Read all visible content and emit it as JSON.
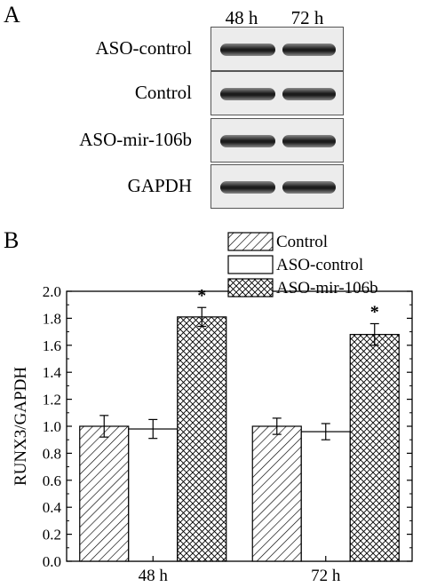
{
  "panel_a": {
    "letter": "A",
    "time_labels": [
      "48 h",
      "72 h"
    ],
    "rows": [
      {
        "label": "ASO-control"
      },
      {
        "label": "Control"
      },
      {
        "label": "ASO-mir-106b"
      },
      {
        "label": "GAPDH"
      }
    ]
  },
  "panel_b": {
    "letter": "B"
  },
  "chart_data": {
    "type": "bar",
    "categories": [
      "48 h",
      "72 h"
    ],
    "series": [
      {
        "name": "Control",
        "values": [
          1.0,
          1.0
        ],
        "errors": [
          0.08,
          0.06
        ],
        "pattern": "diagonal-hatch"
      },
      {
        "name": "ASO-control",
        "values": [
          0.98,
          0.96
        ],
        "errors": [
          0.07,
          0.06
        ],
        "pattern": "none"
      },
      {
        "name": "ASO-mir-106b",
        "values": [
          1.81,
          1.68
        ],
        "errors": [
          0.07,
          0.08
        ],
        "pattern": "crosshatch",
        "annotation": "*"
      }
    ],
    "ylabel": "RUNX3/GAPDH",
    "xlabel": "",
    "ylim": [
      0.0,
      2.0
    ],
    "yticks": [
      "0.0",
      "0.2",
      "0.4",
      "0.6",
      "0.8",
      "1.0",
      "1.2",
      "1.4",
      "1.6",
      "1.8",
      "2.0"
    ],
    "legend_position": "top-right",
    "grid": false
  }
}
